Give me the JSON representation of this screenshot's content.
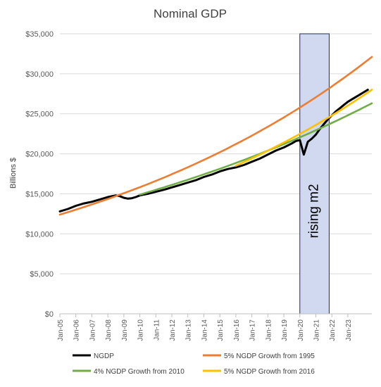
{
  "chart_data": {
    "type": "line",
    "title": "Nominal GDP",
    "xlabel": "",
    "ylabel": "Billions $",
    "ylim": [
      0,
      35000
    ],
    "xlim": [
      "2005-01",
      "2024-07"
    ],
    "y_ticks": [
      "$0",
      "$5,000",
      "$10,000",
      "$15,000",
      "$20,000",
      "$25,000",
      "$30,000",
      "$35,000"
    ],
    "y_tick_values": [
      0,
      5000,
      10000,
      15000,
      20000,
      25000,
      30000,
      35000
    ],
    "x_ticks": [
      "Jan-05",
      "Jan-06",
      "Jan-07",
      "Jan-08",
      "Jan-09",
      "Jan-10",
      "Jan-11",
      "Jan-12",
      "Jan-13",
      "Jan-14",
      "Jan-15",
      "Jan-16",
      "Jan-17",
      "Jan-18",
      "Jan-19",
      "Jan-20",
      "Jan-21",
      "Jan-22",
      "Jan-23"
    ],
    "x_tick_values": [
      2005,
      2006,
      2007,
      2008,
      2009,
      2010,
      2011,
      2012,
      2013,
      2014,
      2015,
      2016,
      2017,
      2018,
      2019,
      2020,
      2021,
      2022,
      2023
    ],
    "grid": "horizontal",
    "legend_position": "bottom",
    "annotation": {
      "text": "rising m2",
      "x_start": "2020-01",
      "x_end": "2021-11",
      "fill": "#d0d9ef",
      "stroke": "#1f2d4d"
    },
    "series": [
      {
        "name": "NGDP",
        "color": "#000000",
        "x": [
          "2005-01",
          "2005-07",
          "2006-01",
          "2006-07",
          "2007-01",
          "2007-07",
          "2008-01",
          "2008-04",
          "2008-07",
          "2008-10",
          "2009-01",
          "2009-04",
          "2009-07",
          "2009-10",
          "2010-01",
          "2010-07",
          "2011-01",
          "2011-07",
          "2012-01",
          "2012-07",
          "2013-01",
          "2013-07",
          "2014-01",
          "2014-07",
          "2015-01",
          "2015-07",
          "2016-01",
          "2016-07",
          "2017-01",
          "2017-07",
          "2018-01",
          "2018-07",
          "2019-01",
          "2019-07",
          "2019-10",
          "2020-01",
          "2020-04",
          "2020-07",
          "2020-10",
          "2021-01",
          "2021-04",
          "2021-07",
          "2021-10",
          "2022-01",
          "2022-04",
          "2022-07",
          "2022-10",
          "2023-01",
          "2023-04",
          "2023-07",
          "2023-10",
          "2024-01",
          "2024-04"
        ],
        "values": [
          12800,
          13100,
          13500,
          13800,
          14000,
          14300,
          14600,
          14700,
          14800,
          14700,
          14500,
          14400,
          14450,
          14600,
          14800,
          15000,
          15250,
          15500,
          15800,
          16100,
          16400,
          16700,
          17100,
          17400,
          17800,
          18100,
          18300,
          18600,
          19000,
          19400,
          19900,
          20400,
          20800,
          21300,
          21600,
          21700,
          19900,
          21500,
          21900,
          22400,
          23100,
          23700,
          24300,
          24800,
          25300,
          25700,
          26100,
          26500,
          26800,
          27100,
          27400,
          27700,
          28000
        ]
      },
      {
        "name": "5% NGDP Growth from 1995",
        "color": "#ed7d31",
        "x": [
          "2005-01",
          "2024-07"
        ],
        "values": [
          12400,
          31400
        ],
        "growth": 0.05
      },
      {
        "name": "4% NGDP Growth from 2010",
        "color": "#70ad47",
        "x": [
          "2010-01",
          "2024-07"
        ],
        "values": [
          14900,
          25500
        ],
        "growth": 0.04
      },
      {
        "name": "5% NGDP Growth from 2016",
        "color": "#ffc000",
        "x": [
          "2016-01",
          "2024-07"
        ],
        "values": [
          18500,
          27200
        ],
        "growth": 0.05
      }
    ]
  }
}
